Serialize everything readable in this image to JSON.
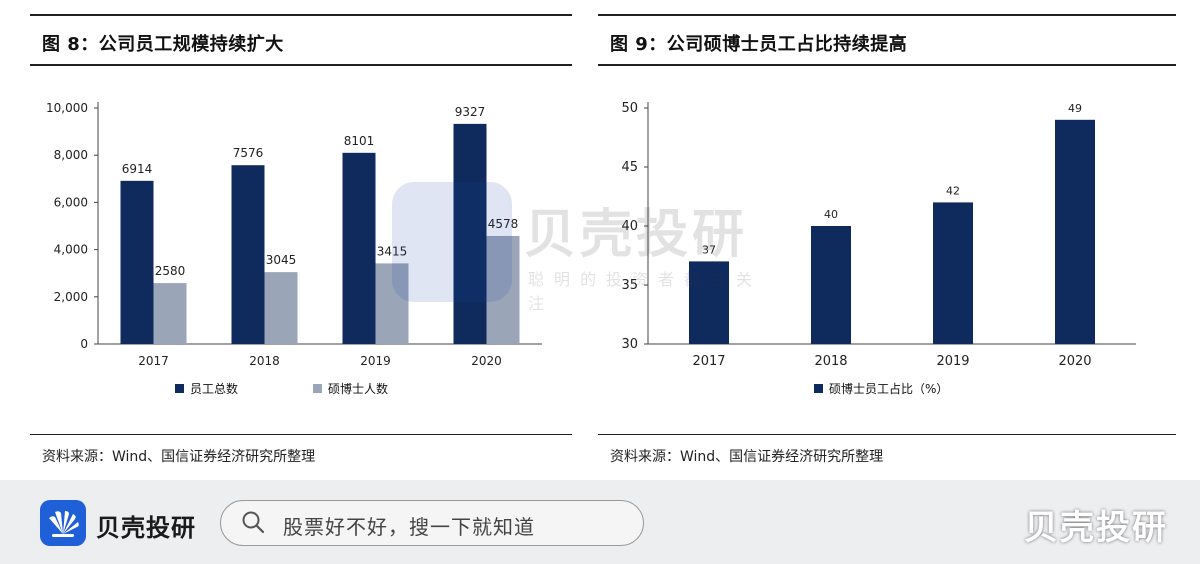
{
  "left_panel": {
    "title": "图 8：公司员工规模持续扩大",
    "source": "资料来源：Wind、国信证券经济研究所整理",
    "legend": [
      "员工总数",
      "硕博士人数"
    ]
  },
  "right_panel": {
    "title": "图 9：公司硕博士员工占比持续提高",
    "source": "资料来源：Wind、国信证券经济研究所整理",
    "legend": [
      "硕博士员工占比（%）"
    ]
  },
  "watermark": {
    "brand": "贝壳投研",
    "tagline": "聪明的投资者都在关注"
  },
  "bottom_bar": {
    "app_name": "贝壳投研",
    "search_placeholder": "股票好不好，搜一下就知道",
    "brand_right": "贝壳投研"
  },
  "colors": {
    "navy": "#0f2a5c",
    "grey": "#9aa5b8",
    "brand_blue": "#1f5fd8"
  },
  "icons": [
    "search-icon",
    "shell-logo-icon"
  ],
  "chart_data": [
    {
      "type": "bar",
      "categories": [
        "2017",
        "2018",
        "2019",
        "2020"
      ],
      "series": [
        {
          "name": "员工总数",
          "values": [
            6914,
            7576,
            8101,
            9327
          ],
          "color": "#0f2a5c"
        },
        {
          "name": "硕博士人数",
          "values": [
            2580,
            3045,
            3415,
            4578
          ],
          "color": "#9aa5b8"
        }
      ],
      "ylim": [
        0,
        10000
      ],
      "yticks": [
        "0",
        "2,000",
        "4,000",
        "6,000",
        "8,000",
        "10,000"
      ],
      "ytick_values": [
        0,
        2000,
        4000,
        6000,
        8000,
        10000
      ],
      "grid": false,
      "legend": "bottom"
    },
    {
      "type": "bar",
      "categories": [
        "2017",
        "2018",
        "2019",
        "2020"
      ],
      "series": [
        {
          "name": "硕博士员工占比（%）",
          "values": [
            37,
            40,
            42,
            49
          ],
          "color": "#0f2a5c"
        }
      ],
      "ylim": [
        30,
        50
      ],
      "yticks": [
        "30",
        "35",
        "40",
        "45",
        "50"
      ],
      "ytick_values": [
        30,
        35,
        40,
        45,
        50
      ],
      "grid": false,
      "legend": "bottom"
    }
  ]
}
